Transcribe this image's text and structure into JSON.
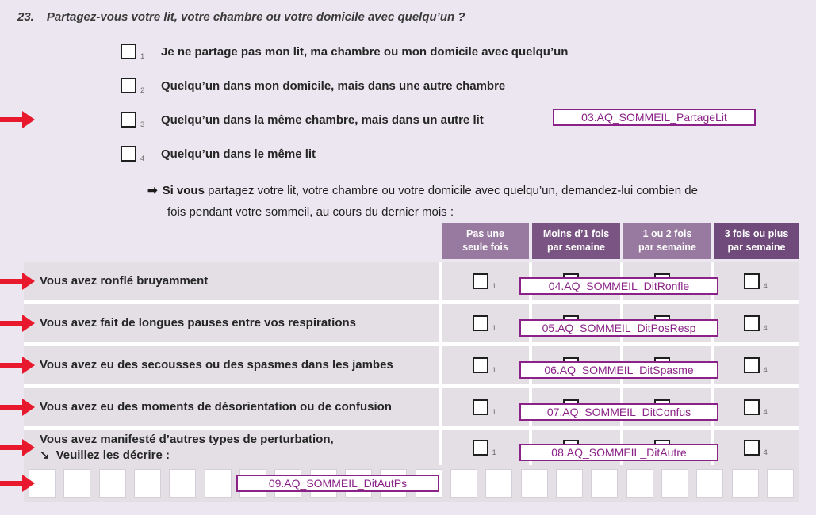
{
  "question": {
    "number": "23.",
    "title": "Partagez-vous votre lit, votre chambre ou votre domicile avec quelqu’un ?"
  },
  "options": [
    {
      "num": "1",
      "label": "Je ne partage pas mon lit, ma chambre ou mon domicile avec quelqu’un"
    },
    {
      "num": "2",
      "label": "Quelqu’un dans mon domicile, mais dans une autre chambre"
    },
    {
      "num": "3",
      "label": "Quelqu’un dans la même chambre, mais dans un autre lit",
      "field_code": "03.AQ_SOMMEIL_PartageLit"
    },
    {
      "num": "4",
      "label": "Quelqu’un dans le même lit"
    }
  ],
  "instruction": {
    "arrow": "➡",
    "bold": "Si vous",
    "line1_rest": " partagez votre lit, votre chambre ou votre domicile avec quelqu’un, demandez-lui combien de",
    "line2": "fois pendant votre sommeil, au cours du dernier mois :"
  },
  "table": {
    "headers": [
      {
        "line1": "Pas une",
        "line2": "seule fois"
      },
      {
        "line1": "Moins d’1 fois",
        "line2": "par semaine"
      },
      {
        "line1": "1 ou 2 fois",
        "line2": "par semaine"
      },
      {
        "line1": "3 fois ou plus",
        "line2": "par semaine"
      }
    ],
    "col_subscripts": [
      "1",
      "2",
      "3",
      "4"
    ],
    "rows": [
      {
        "label": "Vous avez ronflé bruyamment",
        "field_code": "04.AQ_SOMMEIL_DitRonfle"
      },
      {
        "label": "Vous avez fait de longues pauses entre vos respirations",
        "field_code": "05.AQ_SOMMEIL_DitPosResp"
      },
      {
        "label": "Vous avez eu des secousses ou des spasmes dans les jambes",
        "field_code": "06.AQ_SOMMEIL_DitSpasme"
      },
      {
        "label": "Vous avez eu des moments de désorientation ou de confusion",
        "field_code": "07.AQ_SOMMEIL_DitConfus"
      },
      {
        "label": "Vous avez manifesté d’autres types de perturbation,",
        "describe_arrow": "↘",
        "label_line2": "Veuillez les décrire :",
        "field_code": "08.AQ_SOMMEIL_DitAutre"
      }
    ],
    "write_in": {
      "field_code": "09.AQ_SOMMEIL_DitAutPs",
      "cell_count": 22
    }
  },
  "colors": {
    "background": "#ebe6ef",
    "cell": "#e3dfe5",
    "header_light": "#98799f",
    "header_medium": "#7a5583",
    "header_dark": "#6f4a7a",
    "field_purple": "#8b2287",
    "arrow_red": "#e8182d"
  }
}
